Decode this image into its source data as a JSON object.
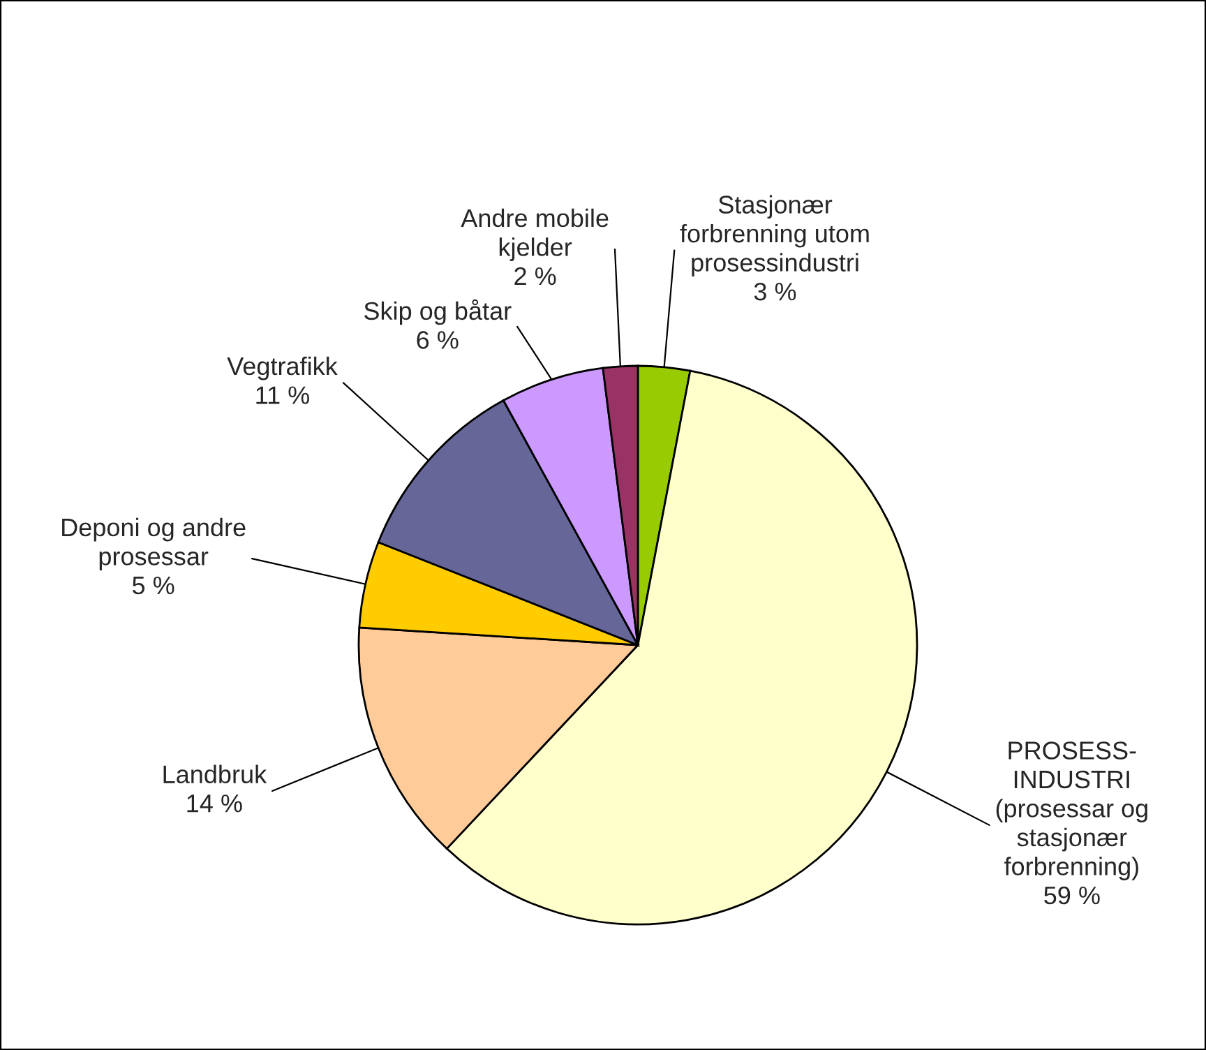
{
  "chart_data": {
    "type": "pie",
    "categories": [
      "Stasjonær\nforbrenning utom\nprosessindustri",
      "PROSESS-\nINDUSTRI\n(prosessar og\nstasjonær\nforbrenning)",
      "Landbruk",
      "Deponi og andre\nprosessar",
      "Vegtrafikk",
      "Skip og båtar",
      "Andre mobile\nkjelder"
    ],
    "values": [
      3,
      59,
      14,
      5,
      11,
      6,
      2
    ],
    "colors": [
      "#99cc00",
      "#ffffcc",
      "#ffcc99",
      "#ffcc00",
      "#666699",
      "#cc99ff",
      "#993366"
    ],
    "value_labels": [
      "3 %",
      "59 %",
      "14 %",
      "5 %",
      "11 %",
      "6 %",
      "2 %"
    ]
  }
}
